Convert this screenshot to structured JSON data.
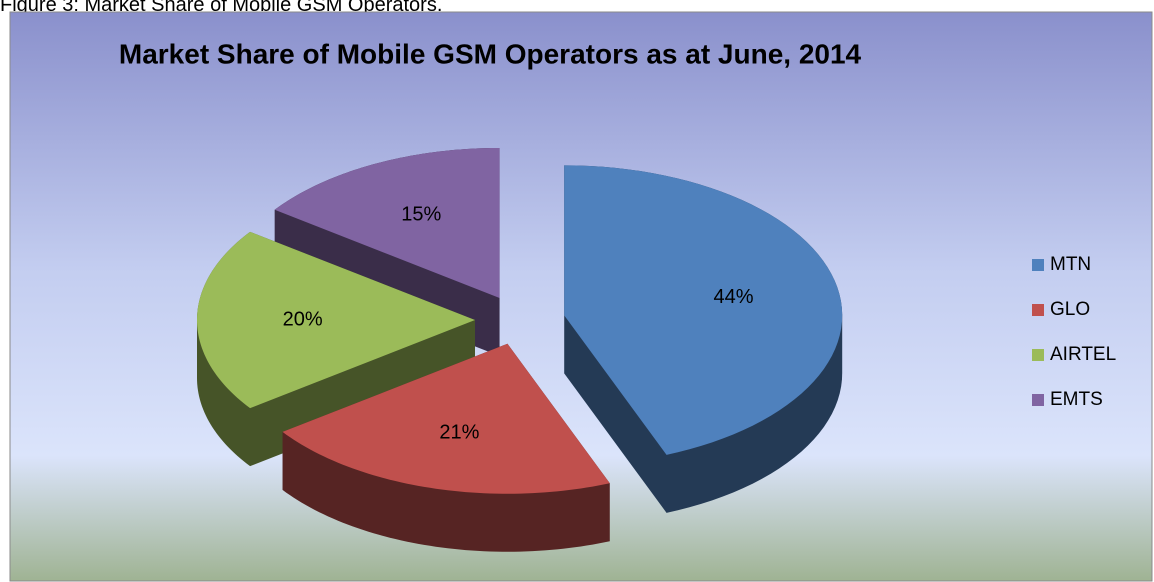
{
  "caption": "Figure 3: Market Share of Mobile GSM Operators.",
  "chart_data": {
    "type": "pie",
    "title": "Market Share of Mobile GSM Operators as at June, 2014",
    "categories": [
      "MTN",
      "GLO",
      "AIRTEL",
      "EMTS"
    ],
    "values": [
      44,
      21,
      20,
      15
    ],
    "value_labels": [
      "44%",
      "21%",
      "20%",
      "15%"
    ],
    "colors": [
      "#4f81bd",
      "#c0504d",
      "#9bbb59",
      "#8064a2"
    ],
    "legend": "right"
  }
}
